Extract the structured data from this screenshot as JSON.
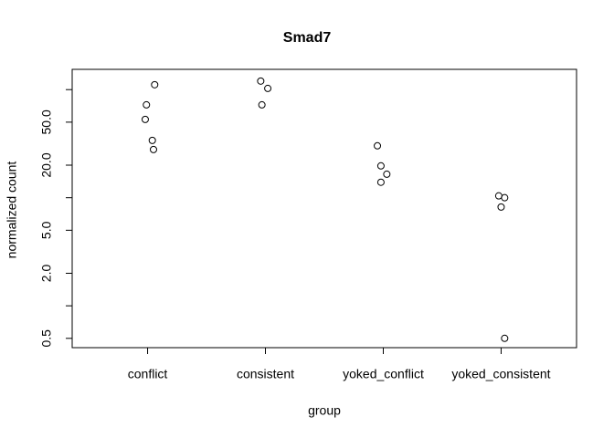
{
  "chart_data": {
    "type": "scatter",
    "title": "Smad7",
    "x_label": "group",
    "y_label": "normalized count",
    "x": [
      1.06,
      0.99,
      0.98,
      1.04,
      1.05,
      1.96,
      2.02,
      1.97,
      2.95,
      2.98,
      3.03,
      2.98,
      3.98,
      4.03,
      4.0,
      4.03
    ],
    "y": [
      111,
      72.3,
      53,
      33.9,
      27.9,
      120,
      102.6,
      72.3,
      30.2,
      19.7,
      16.5,
      13.9,
      10.4,
      10.0,
      8.2,
      0.5
    ],
    "color": "#000000",
    "xlim": [
      0.36,
      4.64
    ],
    "xticks": [
      {
        "value": 1,
        "label": "conflict"
      },
      {
        "value": 2,
        "label": "consistent"
      },
      {
        "value": 3,
        "label": "yoked_conflict"
      },
      {
        "value": 4,
        "label": "yoked_consistent"
      }
    ],
    "ylim": [
      0.41,
      154
    ],
    "log_y": true,
    "yticks": [
      {
        "value": 0.5,
        "label": "0.5"
      },
      {
        "value": 1,
        "label": null
      },
      {
        "value": 2,
        "label": "2.0"
      },
      {
        "value": 5,
        "label": "5.0"
      },
      {
        "value": 10,
        "label": null
      },
      {
        "value": 20,
        "label": "20.0"
      },
      {
        "value": 50,
        "label": "50.0"
      },
      {
        "value": 100,
        "label": null
      }
    ],
    "grid": false
  }
}
